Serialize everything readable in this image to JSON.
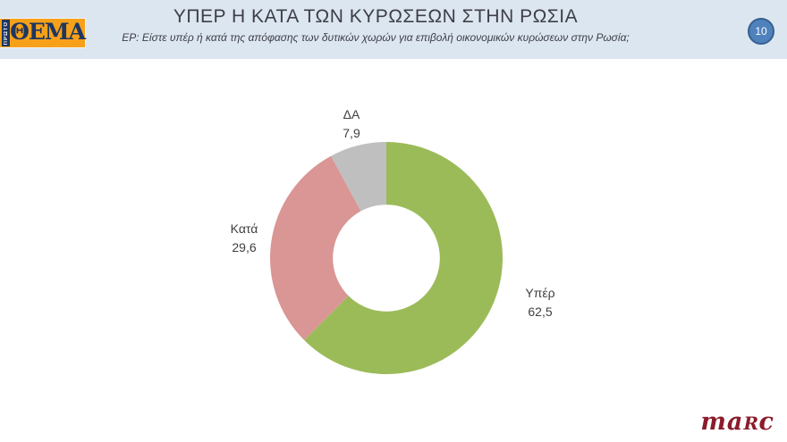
{
  "header": {
    "title": "ΥΠΕΡ Η ΚΑΤΑ ΤΩΝ ΚΥΡΩΣΕΩΝ ΣΤΗΝ ΡΩΣΙΑ",
    "subtitle": "ΕΡ: Είστε υπέρ ή κατά της απόφασης των δυτικών χωρών για επιβολή οικονομικών κυρώσεων στην Ρωσία;",
    "page_number": "10",
    "background_color": "#DCE6F1",
    "badge_fill": "#4F81BD",
    "badge_border": "#36618E"
  },
  "logo": {
    "vertical_text": "ΠΡΩΤΟ",
    "main_text": "ΘΕΜΑ",
    "orange": "#F7A11A",
    "navy": "#1E3660"
  },
  "footer": {
    "brand_part1": "ma",
    "brand_part2": "R",
    "brand_part3": "c",
    "brand_color": "#8B1C2C"
  },
  "chart_data": {
    "type": "pie",
    "subtype": "donut",
    "title": "ΥΠΕΡ Η ΚΑΤΑ ΤΩΝ ΚΥΡΩΣΕΩΝ ΣΤΗΝ ΡΩΣΙΑ",
    "start_angle_deg": 0,
    "direction": "clockwise",
    "inner_radius_ratio": 0.46,
    "legend": "none",
    "labels_position": "outside",
    "slices": [
      {
        "label": "Υπέρ",
        "value": 62.5,
        "display_value": "62,5",
        "color": "#9BBB59"
      },
      {
        "label": "Κατά",
        "value": 29.6,
        "display_value": "29,6",
        "color": "#D99694"
      },
      {
        "label": "ΔΑ",
        "value": 7.9,
        "display_value": "7,9",
        "color": "#BFBFBF"
      }
    ]
  }
}
